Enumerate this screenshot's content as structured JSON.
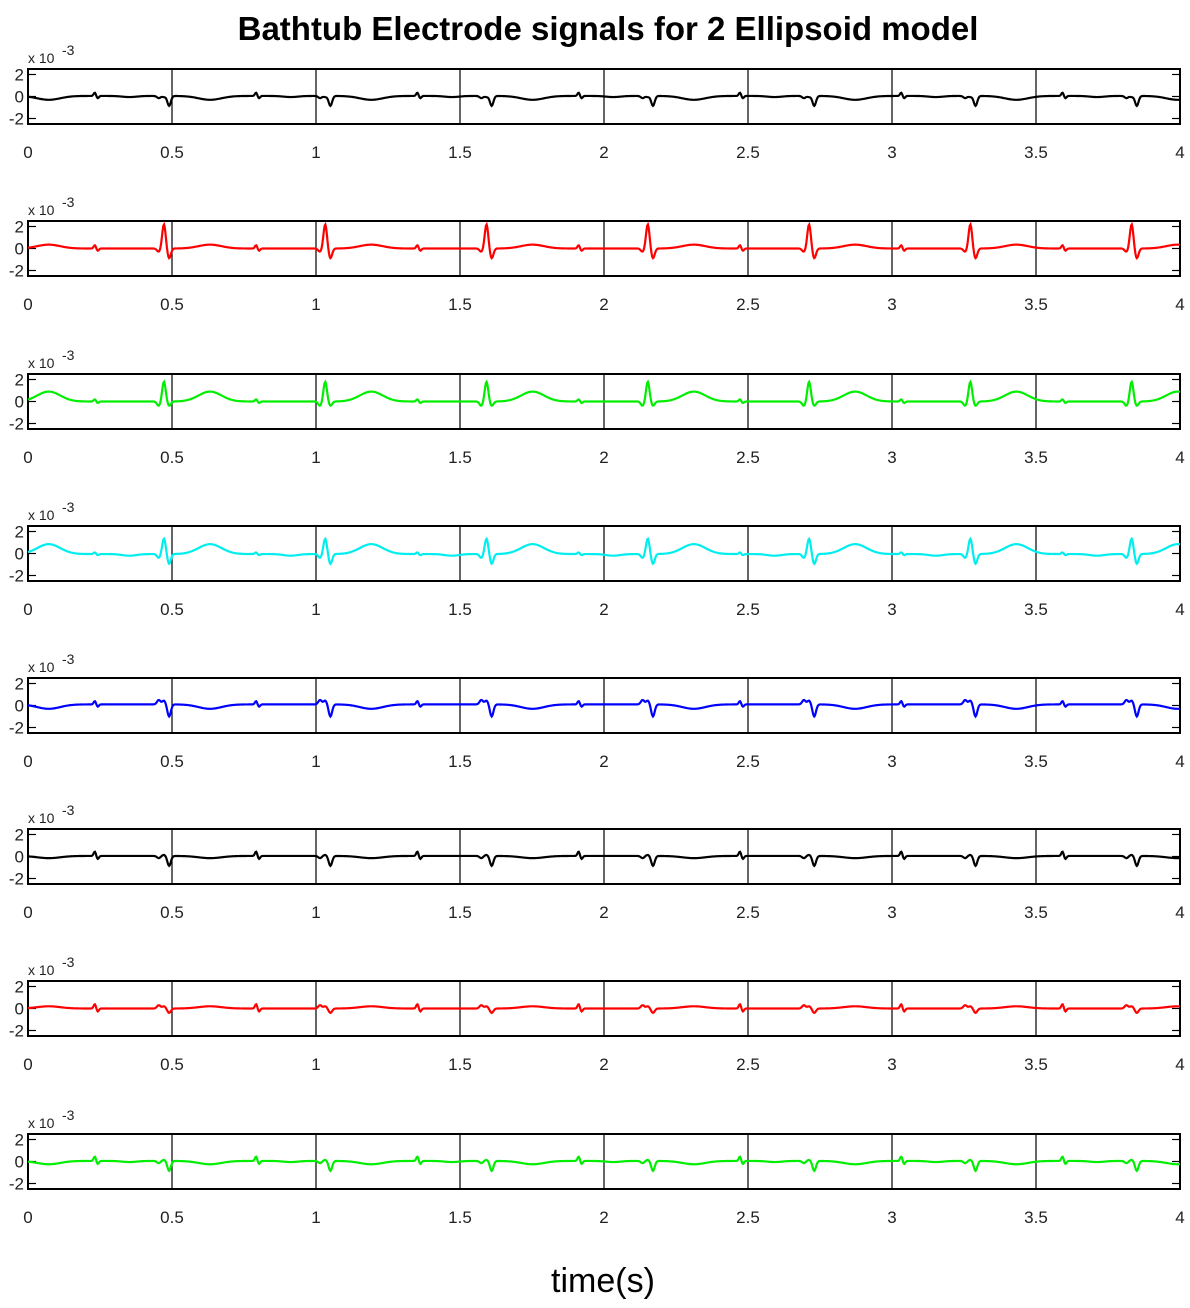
{
  "chart_data": {
    "type": "line",
    "title": "Bathtub Electrode signals for 2 Ellipsoid model",
    "xlabel": "time(s)",
    "ylabel": "",
    "xlim": [
      0,
      4
    ],
    "xticks": [
      0,
      0.5,
      1,
      1.5,
      2,
      2.5,
      3,
      3.5,
      4
    ],
    "xtick_labels": [
      "0",
      "0.5",
      "1",
      "1.5",
      "2",
      "2.5",
      "3",
      "3.5",
      "4"
    ],
    "ylim": [
      -0.0025,
      0.0025
    ],
    "yticks": [
      -0.002,
      0,
      0.002
    ],
    "ytick_labels": [
      "-2",
      "0",
      "2"
    ],
    "y_exponent_label": "x 10",
    "y_exponent_power": "-3",
    "grid": "vertical-lines",
    "beat_period_s": 0.56,
    "samples_per_second": 400,
    "subplots": [
      {
        "color": "#000000",
        "baseline": 5e-05,
        "p": [
          -0.0001,
          0.0
        ],
        "q": [
          -0.0002,
          0.0
        ],
        "r": [
          -0.0001,
          0.0
        ],
        "s": [
          -0.0009,
          0.0
        ],
        "t": [
          -0.00035,
          0.0
        ],
        "notch": 0.0003
      },
      {
        "color": "#ff0000",
        "baseline": 0.0,
        "p": [
          0.0,
          0.0
        ],
        "q": [
          -0.0003,
          0.0
        ],
        "r": [
          0.0022,
          0.0
        ],
        "s": [
          -0.0009,
          0.0
        ],
        "t": [
          0.00035,
          0.0
        ],
        "notch": 0.0003
      },
      {
        "color": "#00ee00",
        "baseline": 0.0,
        "p": [
          0.0,
          0.0
        ],
        "q": [
          -0.0004,
          0.0
        ],
        "r": [
          0.0018,
          0.0
        ],
        "s": [
          -0.0004,
          0.0
        ],
        "t": [
          0.0009,
          0.0
        ],
        "notch": 0.0002
      },
      {
        "color": "#00eeee",
        "baseline": -5e-05,
        "p": [
          -0.00015,
          0.0
        ],
        "q": [
          -0.00035,
          0.0
        ],
        "r": [
          0.0014,
          0.0
        ],
        "s": [
          -0.0009,
          0.0
        ],
        "t": [
          0.0009,
          0.0
        ],
        "notch": 0.00015
      },
      {
        "color": "#0000ff",
        "baseline": 0.0001,
        "p": [
          0.0,
          0.0
        ],
        "q": [
          0.0004,
          0.0
        ],
        "r": [
          0.00035,
          0.0
        ],
        "s": [
          -0.0011,
          0.0
        ],
        "t": [
          -0.0004,
          0.0
        ],
        "notch": 0.0003
      },
      {
        "color": "#000000",
        "baseline": 5e-05,
        "p": [
          0.0,
          0.0
        ],
        "q": [
          -0.0002,
          0.0
        ],
        "r": [
          0.0001,
          0.0
        ],
        "s": [
          -0.0009,
          0.0
        ],
        "t": [
          -0.0002,
          0.0
        ],
        "notch": 0.0004
      },
      {
        "color": "#ff0000",
        "baseline": 0.0,
        "p": [
          0.0,
          0.0
        ],
        "q": [
          0.0003,
          0.0
        ],
        "r": [
          0.0002,
          0.0
        ],
        "s": [
          -0.0004,
          0.0
        ],
        "t": [
          0.0002,
          0.0
        ],
        "notch": 0.0004
      },
      {
        "color": "#00ee00",
        "baseline": 5e-05,
        "p": [
          -0.0001,
          0.0
        ],
        "q": [
          -0.0002,
          0.0
        ],
        "r": [
          0.0001,
          0.0
        ],
        "s": [
          -0.0009,
          0.0
        ],
        "t": [
          -0.0003,
          0.0
        ],
        "notch": 0.0004
      }
    ]
  }
}
